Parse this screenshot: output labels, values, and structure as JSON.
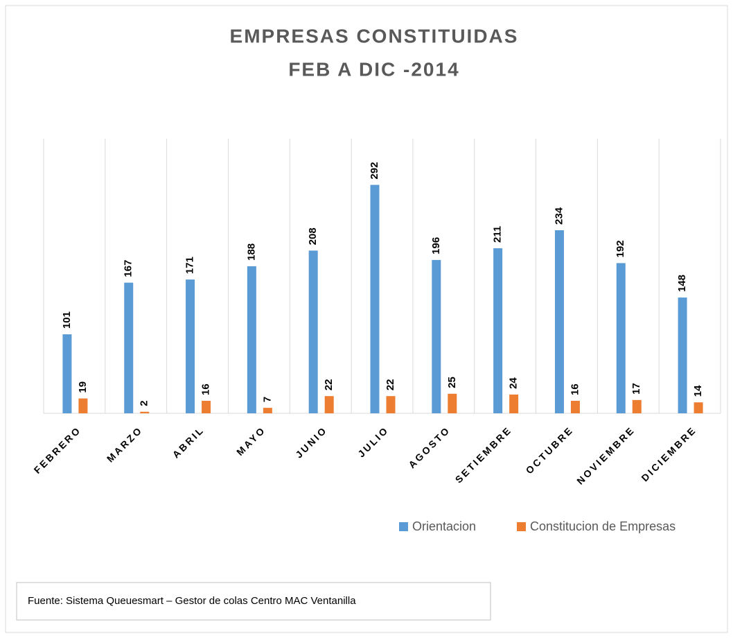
{
  "chart_data": {
    "type": "bar",
    "title": "EMPRESAS CONSTITUIDAS",
    "subtitle": "FEB A DIC -2014",
    "categories": [
      "FEBRERO",
      "MARZO",
      "ABRIL",
      "MAYO",
      "JUNIO",
      "JULIO",
      "AGOSTO",
      "SETIEMBRE",
      "OCTUBRE",
      "NOVIEMBRE",
      "DICIEMBRE"
    ],
    "series": [
      {
        "name": "Orientacion",
        "color": "#5b9bd5",
        "values": [
          101,
          167,
          171,
          188,
          208,
          292,
          196,
          211,
          234,
          192,
          148
        ]
      },
      {
        "name": "Constitucion de Empresas",
        "color": "#ed7d31",
        "values": [
          19,
          2,
          16,
          7,
          22,
          22,
          25,
          24,
          16,
          17,
          14
        ]
      }
    ],
    "ylim": [
      0,
      351
    ],
    "grid": true,
    "legend": "bottom",
    "source": "Fuente: Sistema Queuesmart – Gestor de colas Centro MAC Ventanilla"
  }
}
